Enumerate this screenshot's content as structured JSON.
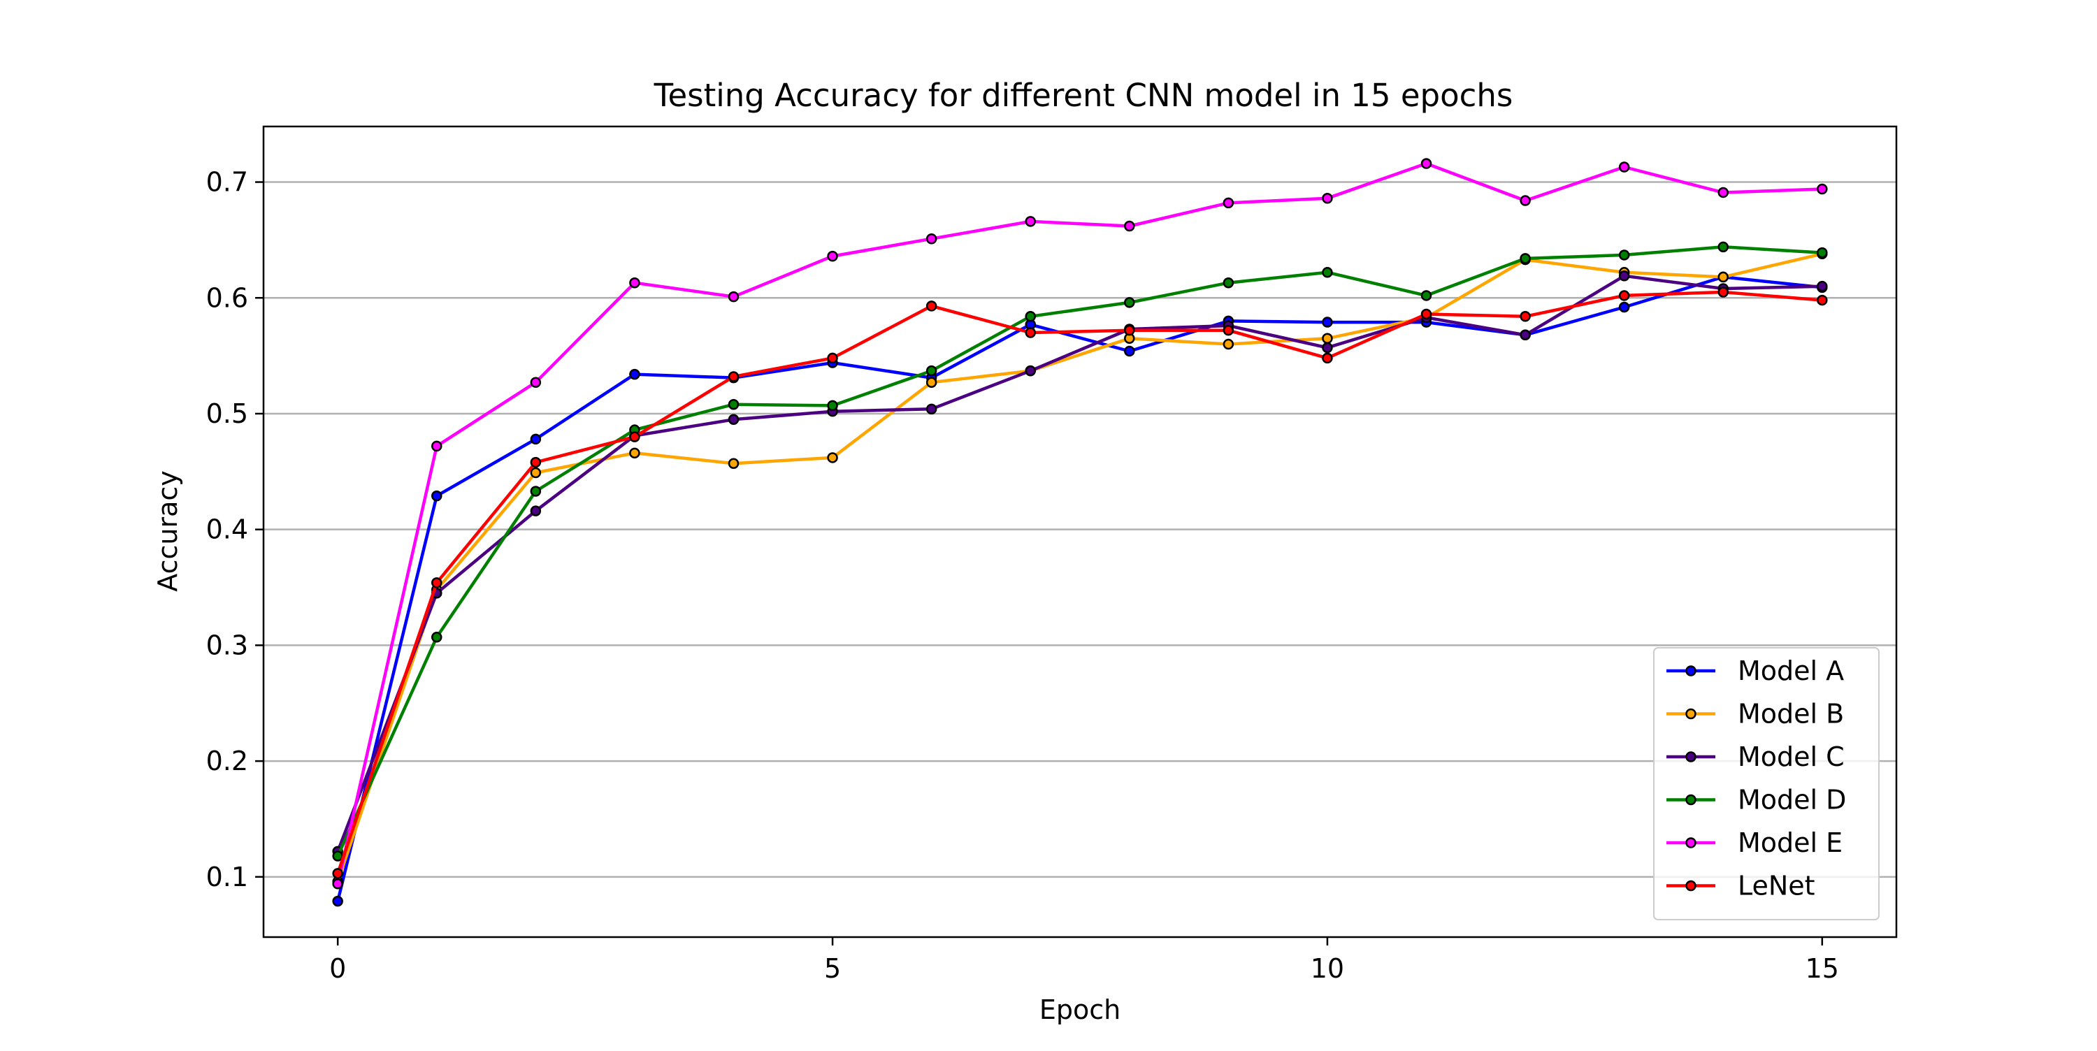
{
  "chart_data": {
    "type": "line",
    "title": "Testing Accuracy for different CNN model in 15 epochs",
    "xlabel": "Epoch",
    "ylabel": "Accuracy",
    "xlim": [
      -0.75,
      15.75
    ],
    "ylim": [
      0.048,
      0.748
    ],
    "x_ticks": [
      0,
      5,
      10,
      15
    ],
    "y_ticks": [
      0.1,
      0.2,
      0.3,
      0.4,
      0.5,
      0.6,
      0.7
    ],
    "x_tick_labels": [
      "0",
      "5",
      "10",
      "15"
    ],
    "y_tick_labels": [
      "0.1",
      "0.2",
      "0.3",
      "0.4",
      "0.5",
      "0.6",
      "0.7"
    ],
    "grid": "horizontal",
    "legend_position": "lower-right",
    "marker": "circle",
    "marker_edge_color": "#000000",
    "x": [
      0,
      1,
      2,
      3,
      4,
      5,
      6,
      7,
      8,
      9,
      10,
      11,
      12,
      13,
      14,
      15
    ],
    "series": [
      {
        "name": "Model A",
        "color": "#0000ff",
        "values": [
          0.079,
          0.429,
          0.478,
          0.534,
          0.531,
          0.544,
          0.531,
          0.577,
          0.554,
          0.58,
          0.579,
          0.579,
          0.568,
          0.592,
          0.618,
          0.609
        ]
      },
      {
        "name": "Model B",
        "color": "#ffa500",
        "values": [
          0.096,
          0.348,
          0.449,
          0.466,
          0.457,
          0.462,
          0.527,
          0.537,
          0.565,
          0.56,
          0.565,
          0.583,
          0.633,
          0.622,
          0.618,
          0.638
        ]
      },
      {
        "name": "Model C",
        "color": "#4b0082",
        "values": [
          0.122,
          0.345,
          0.416,
          0.481,
          0.495,
          0.502,
          0.504,
          0.537,
          0.573,
          0.576,
          0.557,
          0.583,
          0.568,
          0.619,
          0.608,
          0.61
        ]
      },
      {
        "name": "Model D",
        "color": "#008000",
        "values": [
          0.118,
          0.307,
          0.433,
          0.486,
          0.508,
          0.507,
          0.537,
          0.584,
          0.596,
          0.613,
          0.622,
          0.602,
          0.634,
          0.637,
          0.644,
          0.639
        ]
      },
      {
        "name": "Model E",
        "color": "#ff00ff",
        "values": [
          0.094,
          0.472,
          0.527,
          0.613,
          0.601,
          0.636,
          0.651,
          0.666,
          0.662,
          0.682,
          0.686,
          0.716,
          0.684,
          0.713,
          0.691,
          0.694
        ]
      },
      {
        "name": "LeNet",
        "color": "#ff0000",
        "values": [
          0.103,
          0.354,
          0.458,
          0.48,
          0.532,
          0.548,
          0.593,
          0.57,
          0.572,
          0.572,
          0.548,
          0.586,
          0.584,
          0.602,
          0.605,
          0.598
        ]
      }
    ]
  }
}
